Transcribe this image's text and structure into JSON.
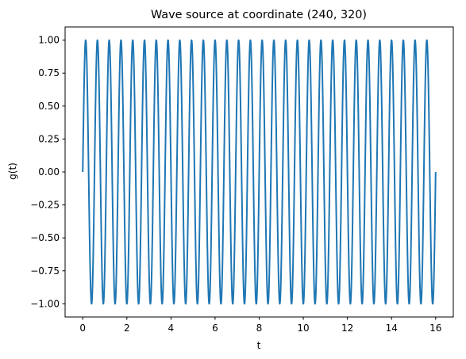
{
  "chart_data": {
    "type": "line",
    "title": "Wave source at coordinate (240, 320)",
    "xlabel": "t",
    "ylabel": "g(t)",
    "xlim": [
      -0.8,
      16.8
    ],
    "ylim": [
      -1.1,
      1.1
    ],
    "x_ticks": [
      0,
      2,
      4,
      6,
      8,
      10,
      12,
      14,
      16
    ],
    "x_tick_labels": [
      "0",
      "2",
      "4",
      "6",
      "8",
      "10",
      "12",
      "14",
      "16"
    ],
    "y_ticks": [
      -1.0,
      -0.75,
      -0.5,
      -0.25,
      0.0,
      0.25,
      0.5,
      0.75,
      1.0
    ],
    "y_tick_labels": [
      "−1.00",
      "−0.75",
      "−0.50",
      "−0.25",
      "0.00",
      "0.25",
      "0.50",
      "0.75",
      "1.00"
    ],
    "grid": false,
    "series": [
      {
        "function": "sin(2*pi*f*t)",
        "frequency": 1.875,
        "t_start": 0,
        "t_end": 16,
        "samples": 3000,
        "color": "#1f77b4"
      }
    ]
  }
}
